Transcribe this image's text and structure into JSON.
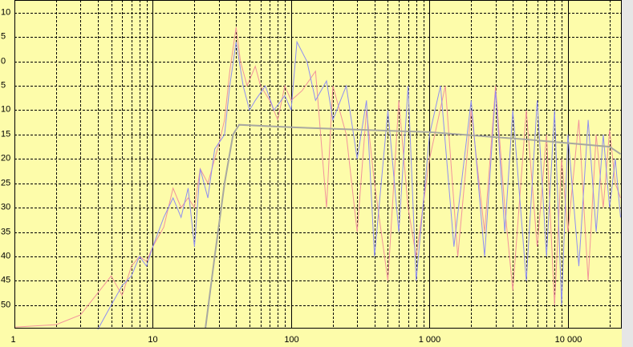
{
  "chart_data": {
    "type": "line",
    "log_x": true,
    "grid": true,
    "background": "#fdfcaa",
    "xlim": [
      1,
      24500
    ],
    "ylim": [
      -54.8,
      12.6
    ],
    "xticks": [
      1,
      10,
      100,
      {
        "value": 1000,
        "label": "1 000"
      },
      {
        "value": 10000,
        "label": "10 000"
      }
    ],
    "x_minor_ticks": [
      2,
      3,
      4,
      5,
      6,
      7,
      8,
      9,
      20,
      30,
      40,
      50,
      60,
      70,
      80,
      90,
      200,
      300,
      400,
      500,
      600,
      700,
      800,
      900,
      2000,
      3000,
      4000,
      5000,
      6000,
      7000,
      8000,
      9000,
      20000
    ],
    "yticks": [
      {
        "value": 10,
        "label": "10"
      },
      {
        "value": 5,
        "label": "5"
      },
      {
        "value": 0,
        "label": "0"
      },
      {
        "value": -5,
        "label": "5"
      },
      {
        "value": -10,
        "label": "10"
      },
      {
        "value": -15,
        "label": "15"
      },
      {
        "value": -20,
        "label": "20"
      },
      {
        "value": -25,
        "label": "25"
      },
      {
        "value": -30,
        "label": "30"
      },
      {
        "value": -35,
        "label": "35"
      },
      {
        "value": -40,
        "label": "40"
      },
      {
        "value": -45,
        "label": "45"
      },
      {
        "value": -50,
        "label": "50"
      }
    ],
    "series": [
      {
        "color": "#f2939c",
        "x": [
          1,
          2,
          3,
          5,
          6,
          7,
          8,
          9,
          10,
          12,
          14,
          16,
          18,
          20,
          22,
          25,
          28,
          30,
          33,
          36,
          40,
          43,
          48,
          55,
          60,
          70,
          80,
          90,
          100,
          120,
          150,
          180,
          200,
          250,
          300,
          350,
          400,
          500,
          600,
          700,
          800,
          1000,
          1300,
          1600,
          2000,
          2500,
          3000,
          3500,
          4000,
          5000,
          6000,
          7000,
          8000,
          9000,
          10000,
          12000,
          14000,
          16000,
          18000,
          20000,
          22000,
          24000
        ],
        "values": [
          -54.5,
          -54,
          -52,
          -44,
          -48,
          -42,
          -40,
          -41,
          -38,
          -34,
          -26,
          -30,
          -28,
          -30,
          -22,
          -25,
          -20,
          -17,
          -12,
          -2,
          7,
          0,
          -5,
          -1,
          -5,
          -8,
          -12,
          -5,
          -8,
          -6,
          -2,
          -30,
          -5,
          -15,
          -35,
          -10,
          -25,
          -45,
          -8,
          -30,
          -40,
          -20,
          -5,
          -40,
          -10,
          -35,
          -5,
          -30,
          -47,
          -10,
          -38,
          -15,
          -50,
          -20,
          -35,
          -12,
          -45,
          -15,
          -30,
          -14,
          -25,
          -28
        ]
      },
      {
        "color": "#8e8ef2",
        "x": [
          4,
          5,
          6,
          7,
          8,
          9,
          10,
          12,
          14,
          16,
          18,
          20,
          22,
          25,
          28,
          33,
          36,
          40,
          45,
          50,
          55,
          65,
          75,
          90,
          100,
          110,
          130,
          150,
          180,
          200,
          250,
          300,
          350,
          400,
          500,
          600,
          700,
          800,
          1000,
          1200,
          1500,
          2000,
          2500,
          3000,
          3500,
          4000,
          5000,
          6000,
          7000,
          8000,
          9000,
          10000,
          12000,
          14000,
          16000,
          18000,
          20000,
          22000,
          24000
        ],
        "values": [
          -55,
          -50,
          -46,
          -44,
          -40,
          -42,
          -38,
          -32,
          -28,
          -32,
          -26,
          -38,
          -22,
          -28,
          -18,
          -15,
          -5,
          4,
          -5,
          -10,
          -8,
          -5,
          -10,
          -7,
          -10,
          4,
          0,
          -8,
          -4,
          -12,
          -5,
          -20,
          -8,
          -40,
          -10,
          -35,
          -5,
          -45,
          -15,
          -5,
          -38,
          -8,
          -40,
          -6,
          -35,
          -10,
          -45,
          -8,
          -40,
          -10,
          -50,
          -15,
          -42,
          -12,
          -35,
          -15,
          -30,
          -20,
          -32
        ]
      },
      {
        "color": "#a8a8a0",
        "x": [
          24,
          28,
          33,
          38,
          42,
          100,
          1000,
          5000,
          20000,
          24000
        ],
        "values": [
          -54.8,
          -40,
          -25,
          -15,
          -13,
          -13.5,
          -14.5,
          -16,
          -17.5,
          -19
        ]
      }
    ]
  }
}
